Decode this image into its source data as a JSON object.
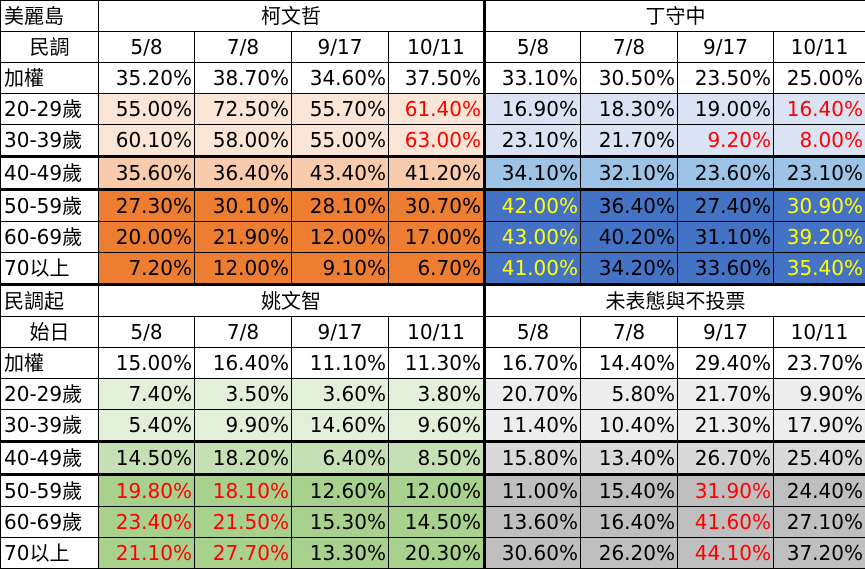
{
  "colors": {
    "white": "#ffffff",
    "ko_l1": "#fbe5d6",
    "ko_l2": "#f8cbad",
    "ko_dark": "#ed7d31",
    "ting_l1": "#dae3f3",
    "ting_l2": "#9dc3e6",
    "ting_dark": "#4472c4",
    "yao_l1": "#e2f0d9",
    "yao_l2": "#c5e0b4",
    "yao_dark": "#a9d18e",
    "und_l1": "#ededed",
    "und_l2": "#d9d9d9",
    "und_dark": "#bfbfbf",
    "red_text": "#ff0000",
    "yellow_text": "#ffff00"
  },
  "top": {
    "corner1": "美麗島",
    "corner2": "民調",
    "cand_a": "柯文哲",
    "cand_b": "丁守中",
    "dates": [
      "5/8",
      "7/8",
      "9/17",
      "10/11",
      "5/8",
      "7/8",
      "9/17",
      "10/11"
    ],
    "rows": [
      {
        "label": "加權",
        "cells": [
          "35.20%",
          "38.70%",
          "34.60%",
          "37.50%",
          "33.10%",
          "30.50%",
          "23.50%",
          "25.00%"
        ]
      },
      {
        "label": "20-29歲",
        "cells": [
          "55.00%",
          "72.50%",
          "55.70%",
          "61.40%",
          "16.90%",
          "18.30%",
          "19.00%",
          "16.40%"
        ]
      },
      {
        "label": "30-39歲",
        "cells": [
          "60.10%",
          "58.00%",
          "55.00%",
          "63.00%",
          "23.10%",
          "21.70%",
          "9.20%",
          "8.00%"
        ]
      },
      {
        "label": "40-49歲",
        "cells": [
          "35.60%",
          "36.40%",
          "43.40%",
          "41.20%",
          "34.10%",
          "32.10%",
          "23.60%",
          "23.10%"
        ]
      },
      {
        "label": "50-59歲",
        "cells": [
          "27.30%",
          "30.10%",
          "28.10%",
          "30.70%",
          "42.00%",
          "36.40%",
          "27.40%",
          "30.90%"
        ]
      },
      {
        "label": "60-69歲",
        "cells": [
          "20.00%",
          "21.90%",
          "12.00%",
          "17.00%",
          "43.00%",
          "40.20%",
          "31.10%",
          "39.20%"
        ]
      },
      {
        "label": "70以上",
        "cells": [
          "7.20%",
          "12.00%",
          "9.10%",
          "6.70%",
          "41.00%",
          "34.20%",
          "33.60%",
          "35.40%"
        ]
      }
    ]
  },
  "bottom": {
    "corner1": "民調起",
    "corner2": "始日",
    "cand_a": "姚文智",
    "cand_b": "未表態與不投票",
    "dates": [
      "5/8",
      "7/8",
      "9/17",
      "10/11",
      "5/8",
      "7/8",
      "9/17",
      "10/11"
    ],
    "rows": [
      {
        "label": "加權",
        "cells": [
          "15.00%",
          "16.40%",
          "11.10%",
          "11.30%",
          "16.70%",
          "14.40%",
          "29.40%",
          "23.70%"
        ]
      },
      {
        "label": "20-29歲",
        "cells": [
          "7.40%",
          "3.50%",
          "3.60%",
          "3.80%",
          "20.70%",
          "5.80%",
          "21.70%",
          "9.90%"
        ]
      },
      {
        "label": "30-39歲",
        "cells": [
          "5.40%",
          "9.90%",
          "14.60%",
          "9.60%",
          "11.40%",
          "10.40%",
          "21.30%",
          "17.90%"
        ]
      },
      {
        "label": "40-49歲",
        "cells": [
          "14.50%",
          "18.20%",
          "6.40%",
          "8.50%",
          "15.80%",
          "13.40%",
          "26.70%",
          "25.40%"
        ]
      },
      {
        "label": "50-59歲",
        "cells": [
          "19.80%",
          "18.10%",
          "12.60%",
          "12.00%",
          "11.00%",
          "15.40%",
          "31.90%",
          "24.40%"
        ]
      },
      {
        "label": "60-69歲",
        "cells": [
          "23.40%",
          "21.50%",
          "15.30%",
          "14.50%",
          "13.60%",
          "16.40%",
          "41.60%",
          "27.10%"
        ]
      },
      {
        "label": "70以上",
        "cells": [
          "21.10%",
          "27.70%",
          "13.30%",
          "20.30%",
          "30.60%",
          "26.20%",
          "44.10%",
          "37.20%"
        ]
      }
    ]
  },
  "top_row_fill": [
    "white",
    "l1",
    "l1",
    "l2",
    "dark",
    "dark",
    "dark"
  ],
  "bottom_row_fill": [
    "white",
    "l1",
    "l1",
    "l2",
    "dark",
    "dark",
    "dark"
  ],
  "top_text_color": [
    [
      "",
      "",
      "",
      "",
      "",
      "",
      "",
      ""
    ],
    [
      "",
      "",
      "",
      "red",
      "",
      "",
      "",
      "red"
    ],
    [
      "",
      "",
      "",
      "red",
      "",
      "",
      "red",
      "red"
    ],
    [
      "",
      "",
      "",
      "",
      "",
      "",
      "",
      ""
    ],
    [
      "",
      "",
      "",
      "",
      "yel",
      "",
      "",
      "yel"
    ],
    [
      "",
      "",
      "",
      "",
      "yel",
      "",
      "",
      "yel"
    ],
    [
      "",
      "",
      "",
      "",
      "yel",
      "",
      "",
      "yel"
    ]
  ],
  "bottom_text_color": [
    [
      "",
      "",
      "",
      "",
      "",
      "",
      "",
      ""
    ],
    [
      "",
      "",
      "",
      "",
      "",
      "",
      "",
      ""
    ],
    [
      "",
      "",
      "",
      "",
      "",
      "",
      "",
      ""
    ],
    [
      "",
      "",
      "",
      "",
      "",
      "",
      "",
      ""
    ],
    [
      "red",
      "red",
      "",
      "",
      "",
      "",
      "red",
      ""
    ],
    [
      "red",
      "red",
      "",
      "",
      "",
      "",
      "red",
      ""
    ],
    [
      "red",
      "red",
      "",
      "",
      "",
      "",
      "red",
      ""
    ]
  ]
}
